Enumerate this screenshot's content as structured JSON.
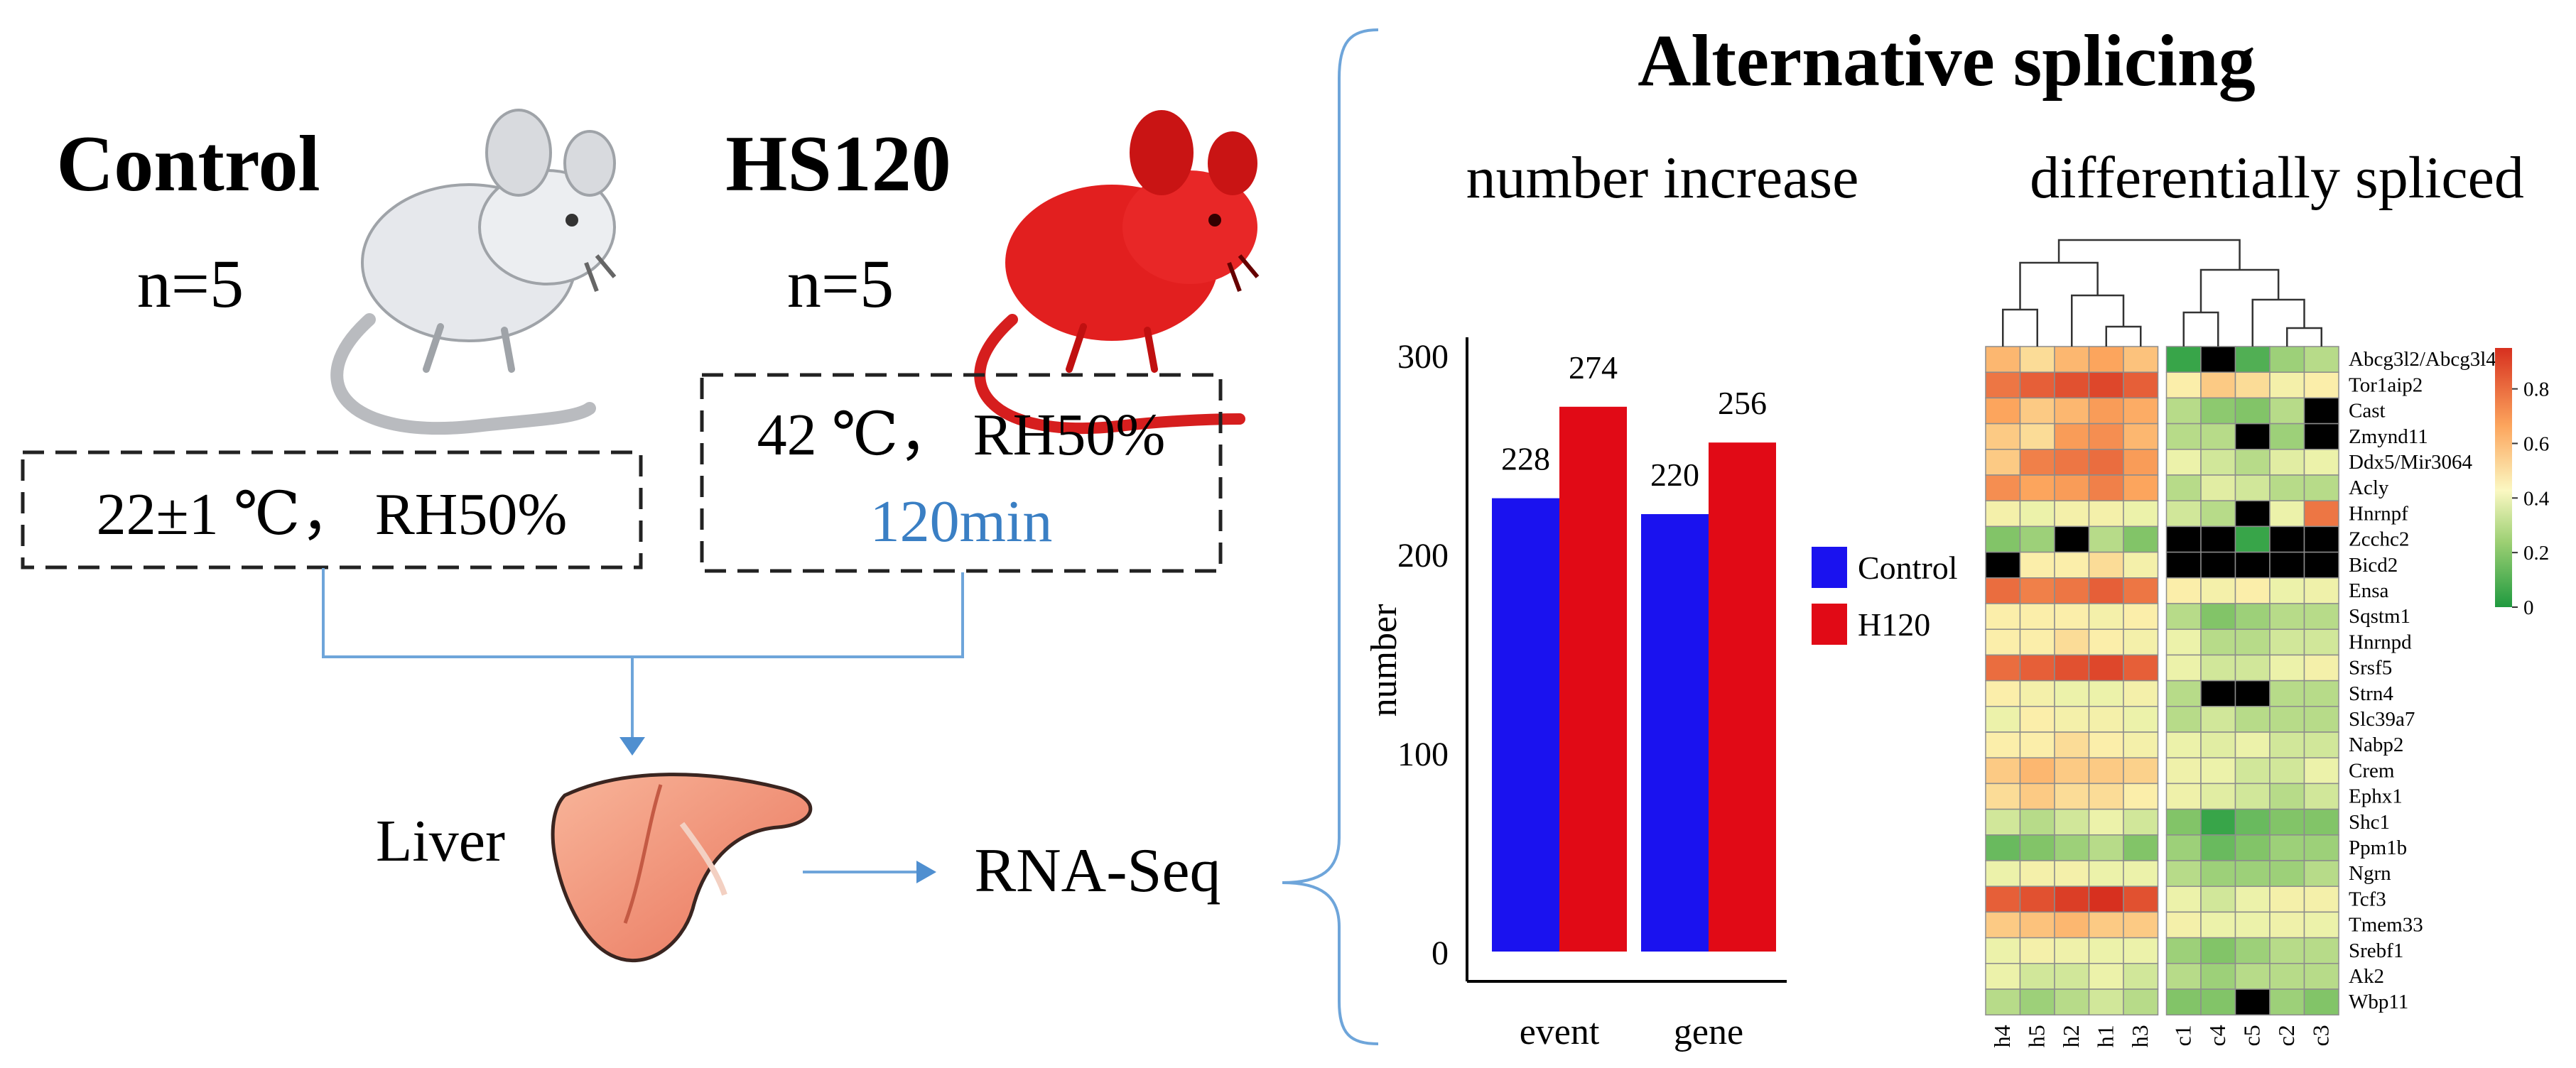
{
  "colors": {
    "control": "#1a12ef",
    "treatment": "#e10a16",
    "accent_blue": "#3a7fc4",
    "line_blue": "#6ea5da",
    "heat_low": "#1f9a3f",
    "heat_mid": "#fbf8c2",
    "heat_high": "#d7301f"
  },
  "left": {
    "control": {
      "label": "Control",
      "n": "n=5",
      "condition": "22±1 ℃， RH50%",
      "icon": "white-mouse-icon"
    },
    "treatment": {
      "label": "HS120",
      "n": "n=5",
      "condition_line1": "42 ℃， RH50%",
      "condition_line2": "120min",
      "icon": "red-mouse-icon"
    },
    "tissue": {
      "label": "Liver",
      "icon": "liver-icon"
    },
    "method": "RNA-Seq"
  },
  "right": {
    "title": "Alternative splicing",
    "subtitle_left": "number increase",
    "subtitle_right": "differentially spliced"
  },
  "chart_data": [
    {
      "type": "bar",
      "title": "number increase",
      "categories": [
        "event",
        "gene"
      ],
      "series": [
        {
          "name": "Control",
          "values": [
            228,
            220
          ]
        },
        {
          "name": "H120",
          "values": [
            274,
            256
          ]
        }
      ],
      "xlabel": "",
      "ylabel": "number",
      "ylim": [
        0,
        300
      ],
      "yticks": [
        0,
        100,
        200,
        300
      ],
      "legend": "right",
      "grid": false
    },
    {
      "type": "heatmap",
      "title": "differentially spliced",
      "columns": [
        "h4",
        "h5",
        "h2",
        "h1",
        "h3",
        "c1",
        "c4",
        "c5",
        "c2",
        "c3"
      ],
      "rows": [
        "Abcg3l2/Abcg3l4",
        "Tor1aip2",
        "Cast",
        "Zmynd11",
        "Ddx5/Mir3064",
        "Acly",
        "Hnrnpf",
        "Zcchc2",
        "Bicd2",
        "Ensa",
        "Sqstm1",
        "Hnrnpd",
        "Srsf5",
        "Strn4",
        "Slc39a7",
        "Nabp2",
        "Crem",
        "Ephx1",
        "Shc1",
        "Ppm1b",
        "Ngrn",
        "Tcf3",
        "Tmem33",
        "Srebf1",
        "Ak2",
        "Wbp11"
      ],
      "values": [
        [
          0.65,
          0.55,
          0.65,
          0.7,
          0.62,
          0.05,
          null,
          0.1,
          0.25,
          0.3
        ],
        [
          0.8,
          0.85,
          0.88,
          0.9,
          0.85,
          0.5,
          0.6,
          0.55,
          0.45,
          0.5
        ],
        [
          0.7,
          0.6,
          0.65,
          0.72,
          0.68,
          0.3,
          0.22,
          0.2,
          0.3,
          null
        ],
        [
          0.6,
          0.55,
          0.72,
          0.75,
          0.65,
          0.3,
          0.3,
          null,
          0.25,
          null
        ],
        [
          0.6,
          0.78,
          0.8,
          0.82,
          0.72,
          0.4,
          0.35,
          0.3,
          0.38,
          0.4
        ],
        [
          0.75,
          0.7,
          0.72,
          0.78,
          0.7,
          0.3,
          0.38,
          0.35,
          0.3,
          0.3
        ],
        [
          0.45,
          0.4,
          0.45,
          0.45,
          0.4,
          0.35,
          0.3,
          null,
          0.4,
          0.8
        ],
        [
          0.2,
          0.25,
          null,
          0.3,
          0.2,
          null,
          null,
          0.05,
          null,
          null
        ],
        [
          null,
          0.5,
          0.5,
          0.55,
          0.45,
          null,
          null,
          null,
          null,
          null
        ],
        [
          0.82,
          0.78,
          0.8,
          0.85,
          0.8,
          0.5,
          0.45,
          0.5,
          0.4,
          0.42
        ],
        [
          0.5,
          0.5,
          0.5,
          0.45,
          0.5,
          0.3,
          0.2,
          0.25,
          0.3,
          0.3
        ],
        [
          0.5,
          0.5,
          0.55,
          0.5,
          0.45,
          0.4,
          0.3,
          0.3,
          0.35,
          0.35
        ],
        [
          0.82,
          0.85,
          0.88,
          0.9,
          0.85,
          0.4,
          0.35,
          0.35,
          0.4,
          0.45
        ],
        [
          0.5,
          0.45,
          0.4,
          0.4,
          0.45,
          0.3,
          null,
          null,
          0.3,
          0.3
        ],
        [
          0.4,
          0.5,
          0.45,
          0.45,
          0.4,
          0.3,
          0.35,
          0.3,
          0.3,
          0.3
        ],
        [
          0.5,
          0.5,
          0.55,
          0.5,
          0.45,
          0.4,
          0.38,
          0.4,
          0.35,
          0.35
        ],
        [
          0.6,
          0.65,
          0.6,
          0.6,
          0.58,
          0.42,
          0.4,
          0.35,
          0.35,
          0.4
        ],
        [
          0.55,
          0.6,
          0.55,
          0.55,
          0.5,
          0.42,
          0.38,
          0.35,
          0.3,
          0.35
        ],
        [
          0.35,
          0.3,
          0.35,
          0.4,
          0.35,
          0.2,
          0.05,
          0.15,
          0.2,
          0.2
        ],
        [
          0.15,
          0.2,
          0.25,
          0.3,
          0.2,
          0.25,
          0.15,
          0.2,
          0.25,
          0.25
        ],
        [
          0.4,
          0.45,
          0.45,
          0.4,
          0.4,
          0.3,
          0.25,
          0.25,
          0.25,
          0.3
        ],
        [
          0.85,
          0.88,
          0.92,
          0.95,
          0.88,
          0.4,
          0.35,
          0.4,
          0.45,
          0.45
        ],
        [
          0.6,
          0.62,
          0.65,
          0.6,
          0.6,
          0.45,
          0.4,
          0.4,
          0.42,
          0.4
        ],
        [
          0.4,
          0.45,
          0.42,
          0.4,
          0.4,
          0.25,
          0.2,
          0.25,
          0.3,
          0.3
        ],
        [
          0.4,
          0.35,
          0.35,
          0.4,
          0.35,
          0.3,
          0.25,
          0.3,
          0.3,
          0.3
        ],
        [
          0.3,
          0.25,
          0.3,
          0.35,
          0.3,
          0.2,
          0.2,
          null,
          0.25,
          0.2
        ]
      ],
      "colorbar": {
        "ticks": [
          0,
          0.2,
          0.4,
          0.6,
          0.8
        ],
        "labels": [
          "0",
          "0.2",
          "0.4",
          "0.6",
          "0.8"
        ],
        "range": [
          0,
          0.95
        ]
      },
      "dendrogram": "columns clustered into h and c groups"
    }
  ]
}
